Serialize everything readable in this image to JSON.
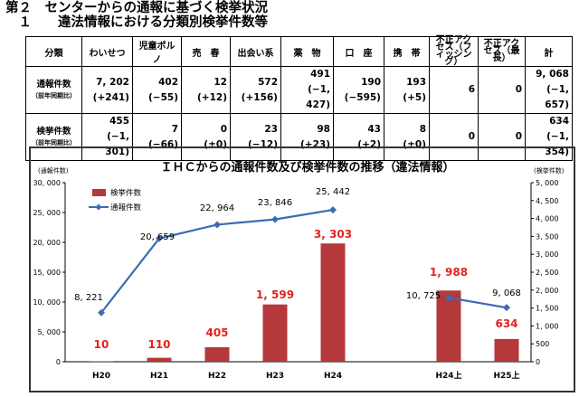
{
  "heading": {
    "line1": "第２　センターからの通報に基づく検挙状況",
    "line2": "　１　　違法情報における分類別検挙件数等"
  },
  "table": {
    "headers": [
      "分類",
      "わいせつ",
      "児童ポルノ",
      "売　春",
      "出会い系",
      "薬　物",
      "口　座",
      "携　帯",
      "不正アクセス（フィッシング）",
      "不正アクセス（最長）",
      "計"
    ],
    "rows": [
      {
        "label": "通報件数",
        "sublabel": "（前年同期比）",
        "values": [
          "7, 202",
          "402",
          "12",
          "572",
          "491",
          "190",
          "193",
          "6",
          "0",
          "9, 068"
        ],
        "changes": [
          "(+241)",
          "(−55)",
          "(+12)",
          "(+156)",
          "(−1, 427)",
          "(−595)",
          "(+5)",
          "",
          "",
          "(−1, 657)"
        ]
      },
      {
        "label": "検挙件数",
        "sublabel": "（前年同期比）",
        "values": [
          "455",
          "7",
          "0",
          "23",
          "98",
          "43",
          "8",
          "0",
          "0",
          "634"
        ],
        "changes": [
          "(−1, 301)",
          "(−66)",
          "(±0)",
          "(−12)",
          "(+23)",
          "(+2)",
          "(±0)",
          "",
          "",
          "(−1, 354)"
        ]
      }
    ]
  },
  "chart_data": {
    "type": "bar",
    "title": "ＩＨＣからの通報件数及び検挙件数の推移（違法情報）",
    "left_axis_label": "(通報件数)",
    "right_axis_label": "(検挙件数)",
    "categories": [
      "H20",
      "H21",
      "H22",
      "H23",
      "H24",
      "H24上",
      "H25上"
    ],
    "left_ylim": [
      0,
      30000
    ],
    "left_ticks": [
      0,
      5000,
      10000,
      15000,
      20000,
      25000,
      30000
    ],
    "left_tick_labels": [
      "0",
      "5, 000",
      "10, 000",
      "15, 000",
      "20, 000",
      "25, 000",
      "30, 000"
    ],
    "right_ylim": [
      0,
      5000
    ],
    "right_ticks": [
      0,
      500,
      1000,
      1500,
      2000,
      2500,
      3000,
      3500,
      4000,
      4500,
      5000
    ],
    "right_tick_labels": [
      "0",
      "500",
      "1, 000",
      "1, 500",
      "2, 000",
      "2, 500",
      "3, 000",
      "3, 500",
      "4, 000",
      "4, 500",
      "5, 000"
    ],
    "series": [
      {
        "name": "検挙件数",
        "kind": "bar",
        "axis": "right",
        "color": "#b5383a",
        "values": [
          10,
          110,
          405,
          1599,
          3303,
          1988,
          634
        ],
        "labels": [
          "10",
          "110",
          "405",
          "1, 599",
          "3, 303",
          "1, 988",
          "634"
        ]
      },
      {
        "name": "通報件数",
        "kind": "line",
        "axis": "left",
        "color": "#3a6db3",
        "values": [
          8221,
          20659,
          22964,
          23846,
          25442,
          10725,
          9068
        ],
        "labels": [
          "8, 221",
          "20, 659",
          "22, 964",
          "23, 846",
          "25, 442",
          "10, 725",
          "9, 068"
        ]
      }
    ],
    "legend_position": "top-left"
  }
}
